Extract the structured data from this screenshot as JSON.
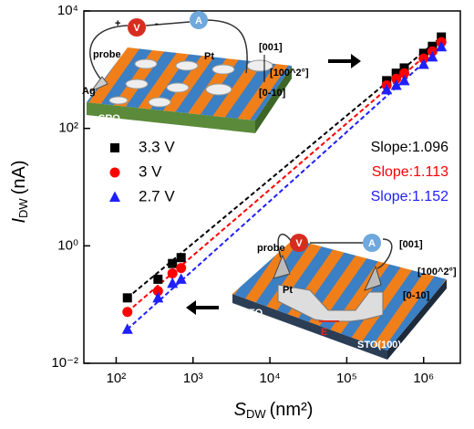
{
  "chart_data": {
    "type": "scatter",
    "log_x": true,
    "log_y": true,
    "xlabel": {
      "symbol": "S",
      "sub": "DW",
      "unit": "(nm²)"
    },
    "ylabel": {
      "symbol": "I",
      "sub": "DW",
      "unit": "(nA)"
    },
    "xlim": [
      38,
      3000000
    ],
    "ylim": [
      0.01,
      10000
    ],
    "xticks": [
      {
        "value": 100,
        "label": "10²"
      },
      {
        "value": 1000,
        "label": "10³"
      },
      {
        "value": 10000,
        "label": "10⁴"
      },
      {
        "value": 100000,
        "label": "10⁵"
      },
      {
        "value": 1000000,
        "label": "10⁶"
      }
    ],
    "yticks": [
      {
        "value": 0.01,
        "label": "10⁻²"
      },
      {
        "value": 1,
        "label": "10⁰"
      },
      {
        "value": 100,
        "label": "10²"
      },
      {
        "value": 10000,
        "label": "10⁴"
      }
    ],
    "x": [
      140,
      350,
      540,
      700,
      330000,
      440000,
      560000,
      1000000,
      1300000,
      1700000
    ],
    "series": [
      {
        "name": "3.3 V",
        "color": "#000000",
        "marker": "square",
        "values": [
          0.13,
          0.27,
          0.5,
          0.63,
          650,
          870,
          1070,
          1900,
          2500,
          3600
        ]
      },
      {
        "name": "3 V",
        "color": "#ff0000",
        "marker": "circle",
        "values": [
          0.075,
          0.17,
          0.34,
          0.42,
          540,
          700,
          870,
          1550,
          2050,
          2950
        ]
      },
      {
        "name": "2.7 V",
        "color": "#1f1fff",
        "marker": "triangle",
        "values": [
          0.038,
          0.13,
          0.23,
          0.27,
          455,
          540,
          650,
          1230,
          1650,
          2450
        ]
      }
    ],
    "annotations": [
      {
        "text": "Slope:1.096",
        "color": "#000000"
      },
      {
        "text": "Slope:1.113",
        "color": "#ff0000"
      },
      {
        "text": "Slope:1.152",
        "color": "#1f1fff"
      }
    ]
  },
  "insets": {
    "top": {
      "plus": "+",
      "v": "V",
      "minus": "-",
      "a": "A",
      "probe": "probe",
      "pt": "Pt",
      "ag": "Ag",
      "sro": "SRO",
      "dir1": "[001]",
      "dir2": "[100^2°]",
      "dir3": "[0-10]"
    },
    "bottom": {
      "probe": "probe",
      "v": "V",
      "a": "A",
      "dir1": "[001]",
      "dir2": "[100^2°]",
      "dir3": "[0-10]",
      "pt": "Pt",
      "bfo": "BFO",
      "e": "E",
      "sto": "STO(100)^2°"
    }
  }
}
